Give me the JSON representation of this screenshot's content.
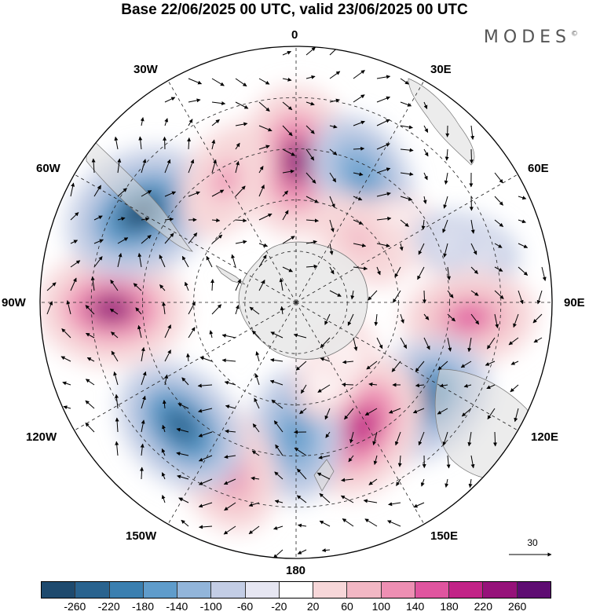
{
  "header": {
    "title": "Base 22/06/2025 00 UTC, valid 23/06/2025 00 UTC",
    "brand": "MODES",
    "brand_mark": "©"
  },
  "map": {
    "projection": "south-polar-stereographic",
    "longitude_labels": {
      "n": "0",
      "ne1": "30E",
      "ne2": "60E",
      "e": "90E",
      "se2": "120E",
      "se1": "150E",
      "s": "180",
      "sw1": "150W",
      "sw2": "120W",
      "w": "90W",
      "nw2": "60W",
      "nw1": "30W"
    },
    "reference_vector": {
      "label": "30"
    },
    "anomaly_cells": [
      {
        "lon": 0,
        "ring": 0.55,
        "value": 240
      },
      {
        "lon": 28,
        "ring": 0.55,
        "value": -160
      },
      {
        "lon": 58,
        "ring": 0.52,
        "value": 40
      },
      {
        "lon": 72,
        "ring": 0.7,
        "value": -60
      },
      {
        "lon": 95,
        "ring": 0.68,
        "value": 170
      },
      {
        "lon": 128,
        "ring": 0.62,
        "value": -220
      },
      {
        "lon": 152,
        "ring": 0.55,
        "value": 230
      },
      {
        "lon": 180,
        "ring": 0.52,
        "value": -160
      },
      {
        "lon": 203,
        "ring": 0.7,
        "value": 170
      },
      {
        "lon": 223,
        "ring": 0.66,
        "value": -210
      },
      {
        "lon": 268,
        "ring": 0.72,
        "value": 240
      },
      {
        "lon": 300,
        "ring": 0.7,
        "value": -260
      },
      {
        "lon": 330,
        "ring": 0.55,
        "value": 120
      },
      {
        "lon": 45,
        "ring": 0.35,
        "value": 80
      },
      {
        "lon": 150,
        "ring": 0.3,
        "value": 60
      }
    ]
  },
  "colorbar": {
    "colors": [
      "#1e4a6e",
      "#29638f",
      "#3a7fb0",
      "#5f9ccb",
      "#92b5da",
      "#c3cde5",
      "#e6e6f2",
      "#ffffff",
      "#f7d7d9",
      "#f2b7c4",
      "#ee8fb3",
      "#e0559f",
      "#c22387",
      "#96127a",
      "#5e0c72"
    ],
    "ticks": [
      "-260",
      "-220",
      "-180",
      "-140",
      "-100",
      "-60",
      "-20",
      "20",
      "60",
      "100",
      "140",
      "180",
      "220",
      "260"
    ]
  }
}
